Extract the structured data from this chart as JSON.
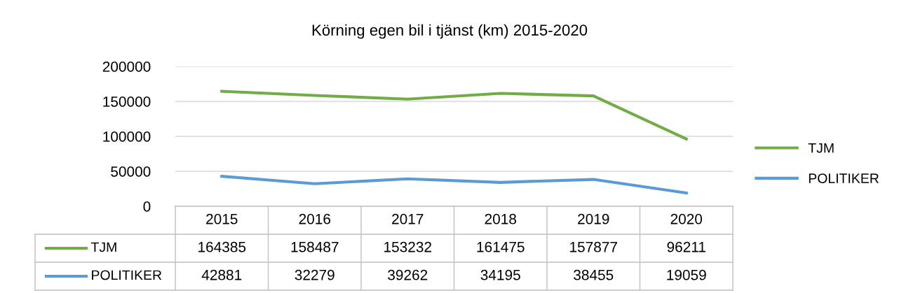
{
  "chart_data": {
    "type": "line",
    "title": "Körning egen bil i tjänst (km) 2015-2020",
    "categories": [
      "2015",
      "2016",
      "2017",
      "2018",
      "2019",
      "2020"
    ],
    "series": [
      {
        "name": "TJM",
        "color": "#70ad47",
        "values": [
          164385,
          158487,
          153232,
          161475,
          157877,
          96211
        ]
      },
      {
        "name": "POLITIKER",
        "color": "#5b9bd5",
        "values": [
          42881,
          32279,
          39262,
          34195,
          38455,
          19059
        ]
      }
    ],
    "ylim": [
      0,
      200000
    ],
    "yticks": [
      0,
      50000,
      100000,
      150000,
      200000
    ],
    "grid": "y",
    "legend": "right",
    "data_labels": true,
    "marker": "none",
    "line_style": "solid"
  }
}
